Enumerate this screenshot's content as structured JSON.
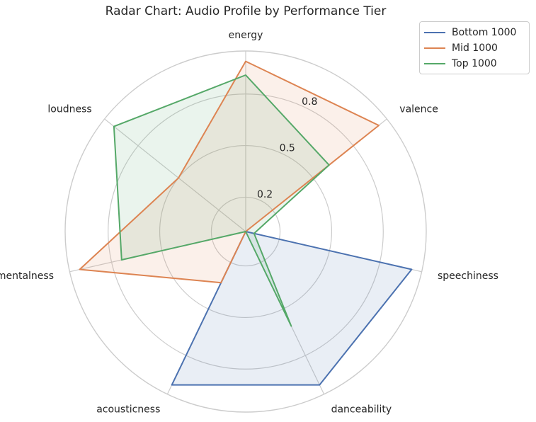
{
  "chart_data": {
    "type": "radar",
    "title": "Radar Chart: Audio Profile by Performance Tier",
    "axes": [
      "energy",
      "valence",
      "speechiness",
      "danceability",
      "acousticness",
      "instrumentalness",
      "loudness"
    ],
    "rlim": [
      0,
      1.05
    ],
    "rticks": [
      0.2,
      0.5,
      0.8
    ],
    "rtick_labels": [
      "0.2",
      "0.5",
      "0.8"
    ],
    "grid": true,
    "legend_position": "top-right",
    "series": [
      {
        "name": "Bottom 1000",
        "color": "#4c72b0",
        "values": [
          0.0,
          0.0,
          0.99,
          0.99,
          0.99,
          0.0,
          0.0
        ]
      },
      {
        "name": "Mid 1000",
        "color": "#dd8452",
        "values": [
          0.99,
          0.99,
          0.0,
          0.0,
          0.33,
          0.99,
          0.5
        ]
      },
      {
        "name": "Top 1000",
        "color": "#55a868",
        "values": [
          0.91,
          0.62,
          0.05,
          0.61,
          0.0,
          0.74,
          0.98
        ]
      }
    ]
  }
}
